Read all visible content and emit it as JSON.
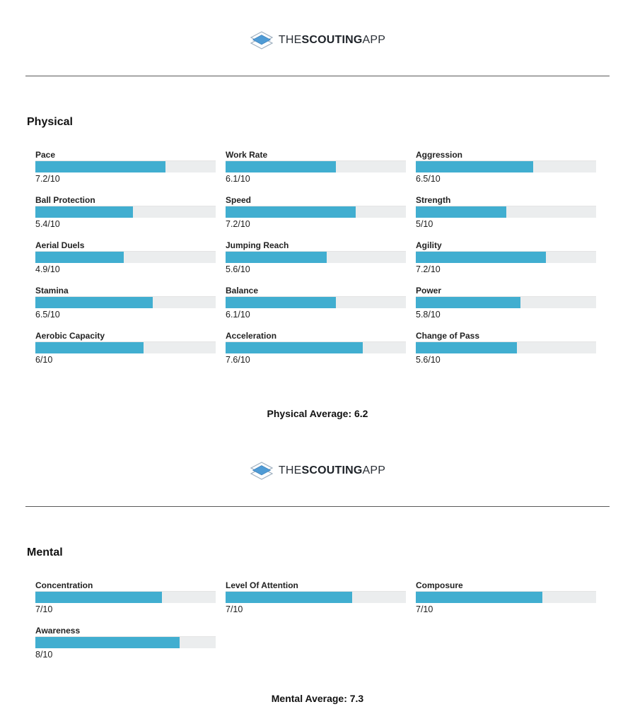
{
  "brand": {
    "the": "THE",
    "scouting": "SCOUTING",
    "app": "APP",
    "icon": "layers-diamond-icon"
  },
  "colors": {
    "bar_fill": "#41aed0",
    "bar_track": "#ebedee",
    "logo_blue": "#4f9bd5",
    "logo_outline": "#9fb0c0",
    "divider": "#5a5a5a"
  },
  "sections": [
    {
      "title": "Physical",
      "average_label": "Physical Average: 6.2",
      "attributes": [
        {
          "label": "Pace",
          "value": "7.2/10",
          "percent": 72
        },
        {
          "label": "Work Rate",
          "value": "6.1/10",
          "percent": 61
        },
        {
          "label": "Aggression",
          "value": "6.5/10",
          "percent": 65
        },
        {
          "label": "Ball Protection",
          "value": "5.4/10",
          "percent": 54
        },
        {
          "label": "Speed",
          "value": "7.2/10",
          "percent": 72
        },
        {
          "label": "Strength",
          "value": "5/10",
          "percent": 50
        },
        {
          "label": "Aerial Duels",
          "value": "4.9/10",
          "percent": 49
        },
        {
          "label": "Jumping Reach",
          "value": "5.6/10",
          "percent": 56
        },
        {
          "label": "Agility",
          "value": "7.2/10",
          "percent": 72
        },
        {
          "label": "Stamina",
          "value": "6.5/10",
          "percent": 65
        },
        {
          "label": "Balance",
          "value": "6.1/10",
          "percent": 61
        },
        {
          "label": "Power",
          "value": "5.8/10",
          "percent": 58
        },
        {
          "label": "Aerobic Capacity",
          "value": "6/10",
          "percent": 60
        },
        {
          "label": "Acceleration",
          "value": "7.6/10",
          "percent": 76
        },
        {
          "label": "Change of Pass",
          "value": "5.6/10",
          "percent": 56
        }
      ]
    },
    {
      "title": "Mental",
      "average_label": "Mental Average: 7.3",
      "attributes": [
        {
          "label": "Concentration",
          "value": "7/10",
          "percent": 70
        },
        {
          "label": "Level Of Attention",
          "value": "7/10",
          "percent": 70
        },
        {
          "label": "Composure",
          "value": "7/10",
          "percent": 70
        },
        {
          "label": "Awareness",
          "value": "8/10",
          "percent": 80
        }
      ]
    }
  ],
  "chart_data": [
    {
      "type": "bar",
      "orientation": "horizontal",
      "title": "Physical",
      "categories": [
        "Pace",
        "Work Rate",
        "Aggression",
        "Ball Protection",
        "Speed",
        "Strength",
        "Aerial Duels",
        "Jumping Reach",
        "Agility",
        "Stamina",
        "Balance",
        "Power",
        "Aerobic Capacity",
        "Acceleration",
        "Change of Pass"
      ],
      "values": [
        7.2,
        6.1,
        6.5,
        5.4,
        7.2,
        5,
        4.9,
        5.6,
        7.2,
        6.5,
        6.1,
        5.8,
        6,
        7.6,
        5.6
      ],
      "value_labels": [
        "7.2/10",
        "6.1/10",
        "6.5/10",
        "5.4/10",
        "7.2/10",
        "5/10",
        "4.9/10",
        "5.6/10",
        "7.2/10",
        "6.5/10",
        "6.1/10",
        "5.8/10",
        "6/10",
        "7.6/10",
        "5.6/10"
      ],
      "xlim": [
        0,
        10
      ],
      "average": 6.2,
      "average_label": "Physical Average: 6.2",
      "legend": false,
      "grid": false
    },
    {
      "type": "bar",
      "orientation": "horizontal",
      "title": "Mental",
      "categories": [
        "Concentration",
        "Level Of Attention",
        "Composure",
        "Awareness"
      ],
      "values": [
        7,
        7,
        7,
        8
      ],
      "value_labels": [
        "7/10",
        "7/10",
        "7/10",
        "8/10"
      ],
      "xlim": [
        0,
        10
      ],
      "average": 7.3,
      "average_label": "Mental Average: 7.3",
      "legend": false,
      "grid": false
    }
  ]
}
